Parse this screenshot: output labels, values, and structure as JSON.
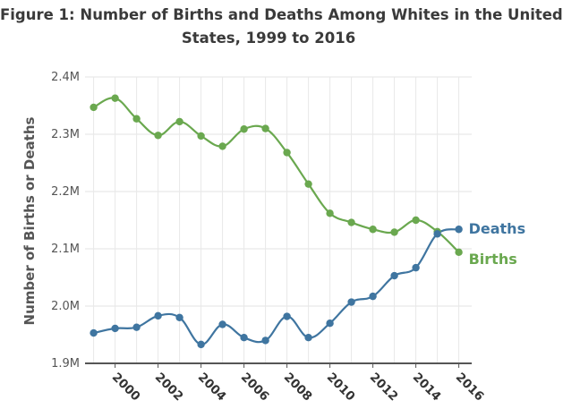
{
  "chart_data": {
    "type": "line",
    "title_line1": "Figure 1: Number of Births and Deaths Among Whites in the United",
    "title_line2": "States, 1999 to 2016",
    "title": "Figure 1: Number of Births and Deaths Among Whites in the United States, 1999 to 2016",
    "xlabel": "",
    "ylabel": "Number of Births or Deaths",
    "x": [
      1999,
      2000,
      2001,
      2002,
      2003,
      2004,
      2005,
      2006,
      2007,
      2008,
      2009,
      2010,
      2011,
      2012,
      2013,
      2014,
      2015,
      2016
    ],
    "xlim": [
      1998.6,
      2016.6
    ],
    "ylim": [
      1900000,
      2400000
    ],
    "x_ticks": [
      2000,
      2002,
      2004,
      2006,
      2008,
      2010,
      2012,
      2014,
      2016
    ],
    "x_tick_labels": [
      "2000",
      "2002",
      "2004",
      "2006",
      "2008",
      "2010",
      "2012",
      "2014",
      "2016"
    ],
    "y_ticks": [
      1900000,
      2000000,
      2100000,
      2200000,
      2300000,
      2400000
    ],
    "y_tick_labels": [
      "1.9M",
      "2.0M",
      "2.1M",
      "2.2M",
      "2.3M",
      "2.4M"
    ],
    "grid": true,
    "legend": "direct labels at line ends (right)",
    "series": [
      {
        "name": "Births",
        "color": "#6aa84f",
        "values": [
          2347000,
          2363000,
          2327000,
          2298000,
          2322000,
          2297000,
          2279000,
          2309000,
          2310000,
          2268000,
          2213000,
          2162000,
          2146000,
          2134000,
          2129000,
          2150000,
          2130000,
          2094000
        ]
      },
      {
        "name": "Deaths",
        "color": "#3f75a0",
        "values": [
          1953000,
          1961000,
          1963000,
          1983000,
          1980000,
          1933000,
          1968000,
          1945000,
          1940000,
          1982000,
          1945000,
          1970000,
          2007000,
          2017000,
          2053000,
          2067000,
          2126000,
          2134000
        ]
      }
    ]
  }
}
